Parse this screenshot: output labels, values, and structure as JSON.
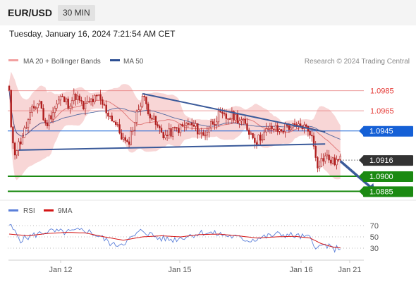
{
  "header": {
    "symbol": "EUR/USD",
    "interval": "30 MIN",
    "datetime": "Tuesday, January 16, 2024 7:21:54 AM CET"
  },
  "legend": {
    "ma20": "MA 20 + Bollinger Bands",
    "ma50": "MA 50",
    "copyright": "Research © 2024 Trading Central",
    "rsi": "RSI",
    "ma9": "9MA"
  },
  "colors": {
    "candle": "#b01e1e",
    "bollinger": "#f6c8c8",
    "ma20": "#e07b7b",
    "ma50": "#2c4f93",
    "resistance": "#e57373",
    "current": "#1560d6",
    "support": "#1b8a12",
    "last_price": "#333333",
    "trendline": "#3a5a9a",
    "rsi": "#5b7fd9",
    "rsi_ma": "#d41515"
  },
  "chart_data": [
    {
      "type": "candlestick",
      "x_ticks": [
        "Jan 12",
        "Jan 15",
        "Jan 16",
        "Jan 21"
      ],
      "ylim": [
        1.0879,
        1.1005
      ],
      "levels": [
        {
          "label": "1.0985",
          "value": 1.0985,
          "kind": "resistance"
        },
        {
          "label": "1.0965",
          "value": 1.0965,
          "kind": "resistance"
        },
        {
          "label": "1.0945",
          "value": 1.0945,
          "kind": "pivot"
        },
        {
          "label": "1.0916",
          "value": 1.0916,
          "kind": "last"
        },
        {
          "label": "1.0900",
          "value": 1.09,
          "kind": "support"
        },
        {
          "label": "1.0885",
          "value": 1.0885,
          "kind": "support"
        }
      ],
      "price_path": [
        [
          0,
          1.0984
        ],
        [
          1,
          1.0945
        ],
        [
          3,
          1.0925
        ],
        [
          6,
          1.0935
        ],
        [
          9,
          1.095
        ],
        [
          12,
          1.0965
        ],
        [
          16,
          1.0975
        ],
        [
          19,
          1.095
        ],
        [
          23,
          1.0965
        ],
        [
          27,
          1.0978
        ],
        [
          31,
          1.0972
        ],
        [
          35,
          1.098
        ],
        [
          39,
          1.0968
        ],
        [
          43,
          1.0975
        ],
        [
          47,
          1.0978
        ],
        [
          51,
          1.0965
        ],
        [
          55,
          1.0955
        ],
        [
          59,
          1.094
        ],
        [
          62,
          1.093
        ],
        [
          66,
          1.0955
        ],
        [
          70,
          1.098
        ],
        [
          74,
          1.0962
        ],
        [
          78,
          1.0948
        ],
        [
          82,
          1.094
        ],
        [
          86,
          1.0945
        ],
        [
          90,
          1.0948
        ],
        [
          94,
          1.0952
        ],
        [
          98,
          1.0948
        ],
        [
          102,
          1.094
        ],
        [
          106,
          1.0952
        ],
        [
          110,
          1.096
        ],
        [
          114,
          1.0958
        ],
        [
          118,
          1.096
        ],
        [
          122,
          1.0955
        ],
        [
          126,
          1.0945
        ],
        [
          130,
          1.0935
        ],
        [
          134,
          1.0943
        ],
        [
          138,
          1.0948
        ],
        [
          142,
          1.0945
        ],
        [
          146,
          1.095
        ],
        [
          150,
          1.0948
        ],
        [
          154,
          1.095
        ],
        [
          158,
          1.0945
        ],
        [
          160,
          1.093
        ],
        [
          162,
          1.0912
        ],
        [
          166,
          1.092
        ],
        [
          170,
          1.0914
        ],
        [
          174,
          1.0916
        ]
      ],
      "trendlines": [
        {
          "from": [
            70,
            1.0982
          ],
          "to": [
            166,
            1.0944
          ]
        },
        {
          "from": [
            5,
            1.0926
          ],
          "to": [
            166,
            1.0932
          ]
        }
      ],
      "forecast_arrow": {
        "from": [
          174,
          1.0915
        ],
        "to": [
          192,
          1.0884
        ]
      },
      "rsi": {
        "y_ticks": [
          "70",
          "50",
          "30"
        ],
        "ylim": [
          10,
          80
        ],
        "values": [
          [
            0,
            72
          ],
          [
            6,
            45
          ],
          [
            12,
            52
          ],
          [
            20,
            60
          ],
          [
            30,
            58
          ],
          [
            40,
            62
          ],
          [
            48,
            50
          ],
          [
            55,
            35
          ],
          [
            62,
            42
          ],
          [
            70,
            62
          ],
          [
            78,
            48
          ],
          [
            86,
            45
          ],
          [
            94,
            52
          ],
          [
            102,
            58
          ],
          [
            110,
            55
          ],
          [
            118,
            50
          ],
          [
            126,
            44
          ],
          [
            134,
            50
          ],
          [
            142,
            55
          ],
          [
            150,
            52
          ],
          [
            158,
            48
          ],
          [
            162,
            30
          ],
          [
            166,
            36
          ],
          [
            170,
            28
          ],
          [
            175,
            32
          ]
        ],
        "ma": [
          [
            0,
            55
          ],
          [
            10,
            52
          ],
          [
            20,
            56
          ],
          [
            30,
            58
          ],
          [
            40,
            57
          ],
          [
            50,
            50
          ],
          [
            60,
            44
          ],
          [
            70,
            50
          ],
          [
            80,
            52
          ],
          [
            90,
            50
          ],
          [
            100,
            54
          ],
          [
            110,
            55
          ],
          [
            120,
            52
          ],
          [
            130,
            48
          ],
          [
            140,
            50
          ],
          [
            150,
            51
          ],
          [
            158,
            48
          ],
          [
            164,
            38
          ],
          [
            170,
            32
          ],
          [
            175,
            30
          ]
        ]
      }
    }
  ]
}
